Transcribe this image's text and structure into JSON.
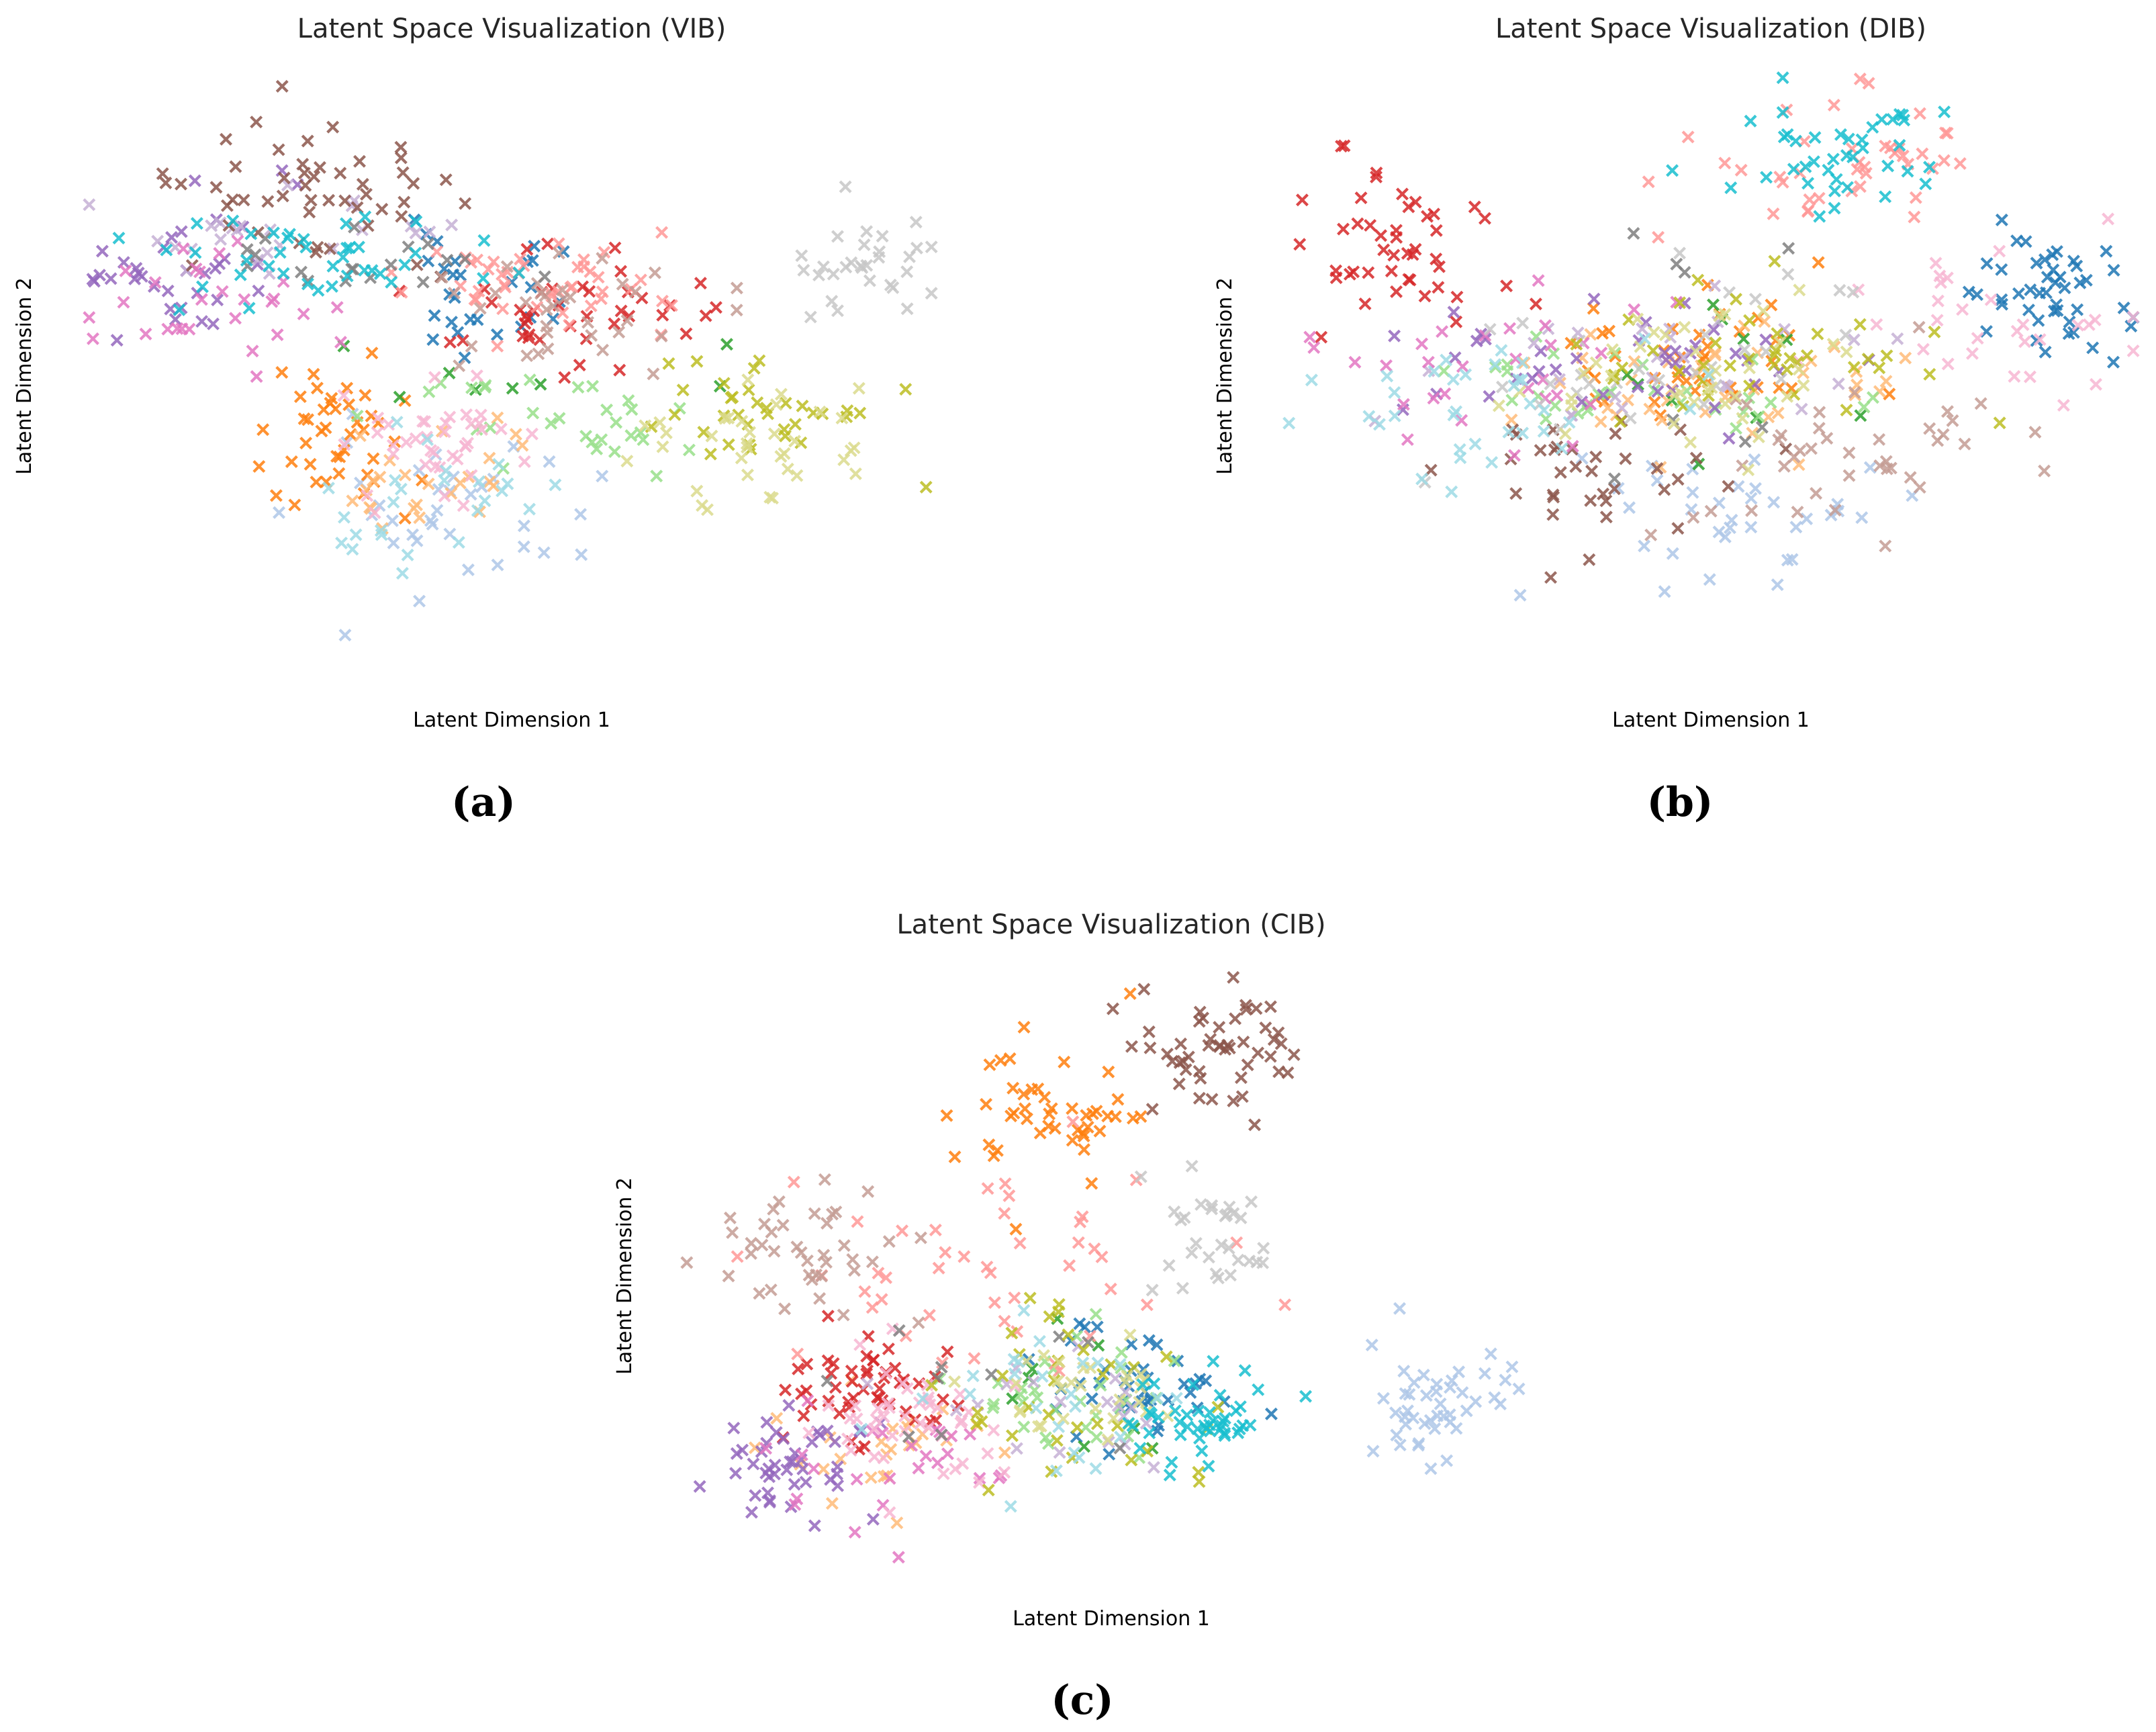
{
  "figure": {
    "panel_labels": [
      "(a)",
      "(b)",
      "(c)"
    ]
  },
  "palette": [
    "#1f77b4",
    "#aec7e8",
    "#ff7f0e",
    "#ffbb78",
    "#2ca02c",
    "#98df8a",
    "#d62728",
    "#ff9896",
    "#9467bd",
    "#c5b0d5",
    "#8c564b",
    "#c49c94",
    "#e377c2",
    "#f7b6d2",
    "#7f7f7f",
    "#c7c7c7",
    "#bcbd22",
    "#dbdb8d",
    "#17becf",
    "#9edae5"
  ],
  "chart_data": [
    {
      "type": "scatter",
      "title": "Latent Space Visualization (VIB)",
      "xlabel": "Latent Dimension 1",
      "ylabel": "Latent Dimension 2",
      "marker": "x",
      "axes_visible": false,
      "grid": false,
      "xlim": [
        0,
        100
      ],
      "ylim": [
        0,
        100
      ],
      "seed": 11,
      "n_classes": 20,
      "clusters": [
        {
          "class": 0,
          "cx": 48,
          "cy": 64,
          "sx": 6,
          "sy": 5,
          "n": 28
        },
        {
          "class": 1,
          "cx": 42,
          "cy": 28,
          "sx": 8,
          "sy": 7,
          "n": 34
        },
        {
          "class": 2,
          "cx": 29,
          "cy": 39,
          "sx": 4,
          "sy": 6,
          "n": 42
        },
        {
          "class": 3,
          "cx": 40,
          "cy": 33,
          "sx": 5,
          "sy": 5,
          "n": 25
        },
        {
          "class": 4,
          "cx": 52,
          "cy": 48,
          "sx": 8,
          "sy": 4,
          "n": 8
        },
        {
          "class": 5,
          "cx": 55,
          "cy": 44,
          "sx": 10,
          "sy": 4,
          "n": 30
        },
        {
          "class": 6,
          "cx": 57,
          "cy": 60,
          "sx": 8,
          "sy": 5,
          "n": 40
        },
        {
          "class": 7,
          "cx": 54,
          "cy": 65,
          "sx": 8,
          "sy": 5,
          "n": 45
        },
        {
          "class": 8,
          "cx": 11,
          "cy": 66,
          "sx": 6,
          "sy": 5,
          "n": 35
        },
        {
          "class": 9,
          "cx": 23,
          "cy": 72,
          "sx": 10,
          "sy": 4,
          "n": 25
        },
        {
          "class": 10,
          "cx": 26,
          "cy": 79,
          "sx": 8,
          "sy": 6,
          "n": 50
        },
        {
          "class": 11,
          "cx": 56,
          "cy": 63,
          "sx": 8,
          "sy": 5,
          "n": 35
        },
        {
          "class": 12,
          "cx": 14,
          "cy": 63,
          "sx": 8,
          "sy": 5,
          "n": 28
        },
        {
          "class": 13,
          "cx": 43,
          "cy": 40,
          "sx": 6,
          "sy": 5,
          "n": 40
        },
        {
          "class": 14,
          "cx": 35,
          "cy": 72,
          "sx": 10,
          "sy": 6,
          "n": 18
        },
        {
          "class": 15,
          "cx": 91,
          "cy": 68,
          "sx": 5,
          "sy": 4,
          "n": 30
        },
        {
          "class": 16,
          "cx": 80,
          "cy": 44,
          "sx": 8,
          "sy": 6,
          "n": 35
        },
        {
          "class": 17,
          "cx": 78,
          "cy": 40,
          "sx": 8,
          "sy": 5,
          "n": 35
        },
        {
          "class": 18,
          "cx": 27,
          "cy": 70,
          "sx": 12,
          "sy": 4,
          "n": 40
        },
        {
          "class": 19,
          "cx": 40,
          "cy": 28,
          "sx": 7,
          "sy": 6,
          "n": 25
        }
      ]
    },
    {
      "type": "scatter",
      "title": "Latent Space Visualization (DIB)",
      "xlabel": "Latent Dimension 1",
      "ylabel": "Latent Dimension 2",
      "marker": "x",
      "axes_visible": false,
      "grid": false,
      "xlim": [
        0,
        100
      ],
      "ylim": [
        0,
        100
      ],
      "seed": 23,
      "n_classes": 20,
      "clusters": [
        {
          "class": 0,
          "cx": 88,
          "cy": 63,
          "sx": 5,
          "sy": 6,
          "n": 45
        },
        {
          "class": 1,
          "cx": 54,
          "cy": 28,
          "sx": 10,
          "sy": 6,
          "n": 35
        },
        {
          "class": 2,
          "cx": 50,
          "cy": 52,
          "sx": 10,
          "sy": 5,
          "n": 40
        },
        {
          "class": 3,
          "cx": 50,
          "cy": 48,
          "sx": 10,
          "sy": 5,
          "n": 40
        },
        {
          "class": 4,
          "cx": 45,
          "cy": 48,
          "sx": 12,
          "sy": 8,
          "n": 10
        },
        {
          "class": 5,
          "cx": 40,
          "cy": 46,
          "sx": 12,
          "sy": 5,
          "n": 30
        },
        {
          "class": 6,
          "cx": 13,
          "cy": 73,
          "sx": 5,
          "sy": 7,
          "n": 45
        },
        {
          "class": 7,
          "cx": 66,
          "cy": 84,
          "sx": 8,
          "sy": 6,
          "n": 40
        },
        {
          "class": 8,
          "cx": 40,
          "cy": 50,
          "sx": 12,
          "sy": 6,
          "n": 40
        },
        {
          "class": 9,
          "cx": 40,
          "cy": 52,
          "sx": 12,
          "sy": 6,
          "n": 25
        },
        {
          "class": 10,
          "cx": 36,
          "cy": 34,
          "sx": 8,
          "sy": 6,
          "n": 35
        },
        {
          "class": 11,
          "cx": 63,
          "cy": 38,
          "sx": 10,
          "sy": 6,
          "n": 40
        },
        {
          "class": 12,
          "cx": 22,
          "cy": 52,
          "sx": 10,
          "sy": 6,
          "n": 30
        },
        {
          "class": 13,
          "cx": 82,
          "cy": 59,
          "sx": 8,
          "sy": 6,
          "n": 30
        },
        {
          "class": 14,
          "cx": 45,
          "cy": 50,
          "sx": 15,
          "sy": 10,
          "n": 8
        },
        {
          "class": 15,
          "cx": 50,
          "cy": 52,
          "sx": 15,
          "sy": 8,
          "n": 30
        },
        {
          "class": 16,
          "cx": 55,
          "cy": 54,
          "sx": 10,
          "sy": 6,
          "n": 40
        },
        {
          "class": 17,
          "cx": 50,
          "cy": 49,
          "sx": 12,
          "sy": 5,
          "n": 40
        },
        {
          "class": 18,
          "cx": 64,
          "cy": 87,
          "sx": 6,
          "sy": 5,
          "n": 40
        },
        {
          "class": 19,
          "cx": 22,
          "cy": 44,
          "sx": 10,
          "sy": 6,
          "n": 35
        }
      ]
    },
    {
      "type": "scatter",
      "title": "Latent Space Visualization (CIB)",
      "xlabel": "Latent Dimension 1",
      "ylabel": "Latent Dimension 2",
      "marker": "x",
      "axes_visible": false,
      "grid": false,
      "xlim": [
        0,
        100
      ],
      "ylim": [
        0,
        100
      ],
      "seed": 37,
      "n_classes": 20,
      "clusters": [
        {
          "class": 0,
          "cx": 54,
          "cy": 32,
          "sx": 5,
          "sy": 5,
          "n": 40
        },
        {
          "class": 1,
          "cx": 88,
          "cy": 28,
          "sx": 4,
          "sy": 5,
          "n": 45
        },
        {
          "class": 2,
          "cx": 43,
          "cy": 76,
          "sx": 6,
          "sy": 7,
          "n": 45
        },
        {
          "class": 3,
          "cx": 25,
          "cy": 20,
          "sx": 6,
          "sy": 5,
          "n": 25
        },
        {
          "class": 4,
          "cx": 46,
          "cy": 30,
          "sx": 6,
          "sy": 5,
          "n": 8
        },
        {
          "class": 5,
          "cx": 45,
          "cy": 28,
          "sx": 6,
          "sy": 5,
          "n": 30
        },
        {
          "class": 6,
          "cx": 22,
          "cy": 30,
          "sx": 6,
          "sy": 4,
          "n": 50
        },
        {
          "class": 7,
          "cx": 36,
          "cy": 50,
          "sx": 12,
          "sy": 10,
          "n": 45
        },
        {
          "class": 8,
          "cx": 14,
          "cy": 18,
          "sx": 5,
          "sy": 5,
          "n": 45
        },
        {
          "class": 9,
          "cx": 45,
          "cy": 25,
          "sx": 8,
          "sy": 6,
          "n": 20
        },
        {
          "class": 10,
          "cx": 62,
          "cy": 88,
          "sx": 5,
          "sy": 5,
          "n": 50
        },
        {
          "class": 11,
          "cx": 14,
          "cy": 52,
          "sx": 6,
          "sy": 6,
          "n": 40
        },
        {
          "class": 12,
          "cx": 24,
          "cy": 17,
          "sx": 6,
          "sy": 5,
          "n": 25
        },
        {
          "class": 13,
          "cx": 28,
          "cy": 25,
          "sx": 6,
          "sy": 6,
          "n": 45
        },
        {
          "class": 14,
          "cx": 40,
          "cy": 30,
          "sx": 10,
          "sy": 8,
          "n": 10
        },
        {
          "class": 15,
          "cx": 62,
          "cy": 55,
          "sx": 4,
          "sy": 5,
          "n": 30
        },
        {
          "class": 16,
          "cx": 44,
          "cy": 28,
          "sx": 8,
          "sy": 8,
          "n": 35
        },
        {
          "class": 17,
          "cx": 46,
          "cy": 30,
          "sx": 6,
          "sy": 5,
          "n": 30
        },
        {
          "class": 18,
          "cx": 60,
          "cy": 26,
          "sx": 5,
          "sy": 5,
          "n": 45
        },
        {
          "class": 19,
          "cx": 42,
          "cy": 30,
          "sx": 8,
          "sy": 6,
          "n": 25
        }
      ]
    }
  ]
}
